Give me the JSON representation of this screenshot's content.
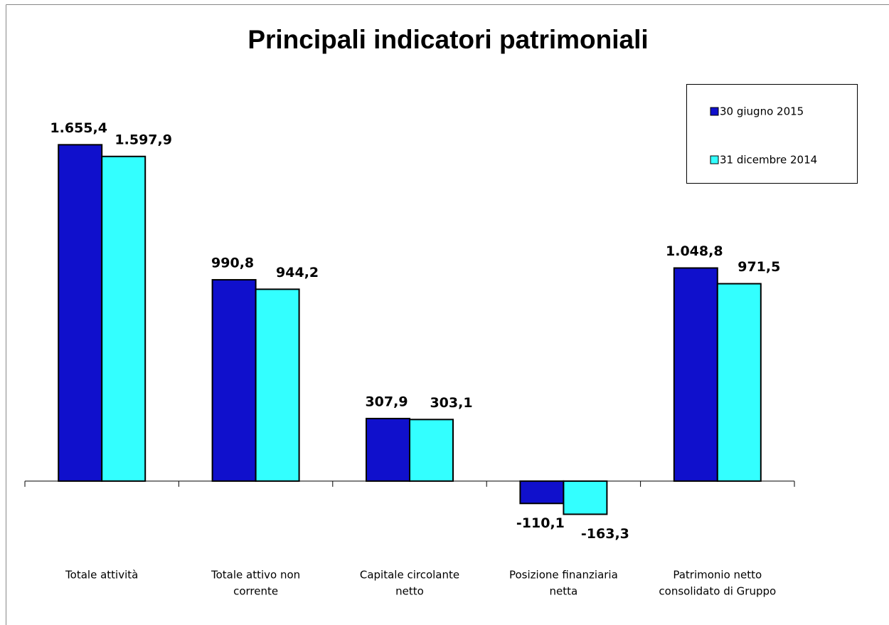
{
  "chart_data": {
    "type": "bar",
    "title": "Principali indicatori patrimoniali",
    "categories": [
      [
        "Totale attività"
      ],
      [
        "Totale attivo non",
        "corrente"
      ],
      [
        "Capitale circolante",
        "netto"
      ],
      [
        "Posizione finanziaria",
        "netta"
      ],
      [
        "Patrimonio netto",
        "consolidato di Gruppo"
      ]
    ],
    "series": [
      {
        "name": "30 giugno 2015",
        "color": "#1010cc",
        "values": [
          1655.4,
          990.8,
          307.9,
          -110.1,
          1048.8
        ],
        "value_labels": [
          "1.655,4",
          "990,8",
          "307,9",
          "-110,1",
          "1.048,8"
        ]
      },
      {
        "name": "31 dicembre 2014",
        "color": "#33ffff",
        "values": [
          1597.9,
          944.2,
          303.1,
          -163.3,
          971.5
        ],
        "value_labels": [
          "1.597,9",
          "944,2",
          "303,1",
          "-163,3",
          "971,5"
        ]
      }
    ],
    "ylim": [
      -400,
      2000
    ],
    "grid": false,
    "legend": "upper right"
  }
}
